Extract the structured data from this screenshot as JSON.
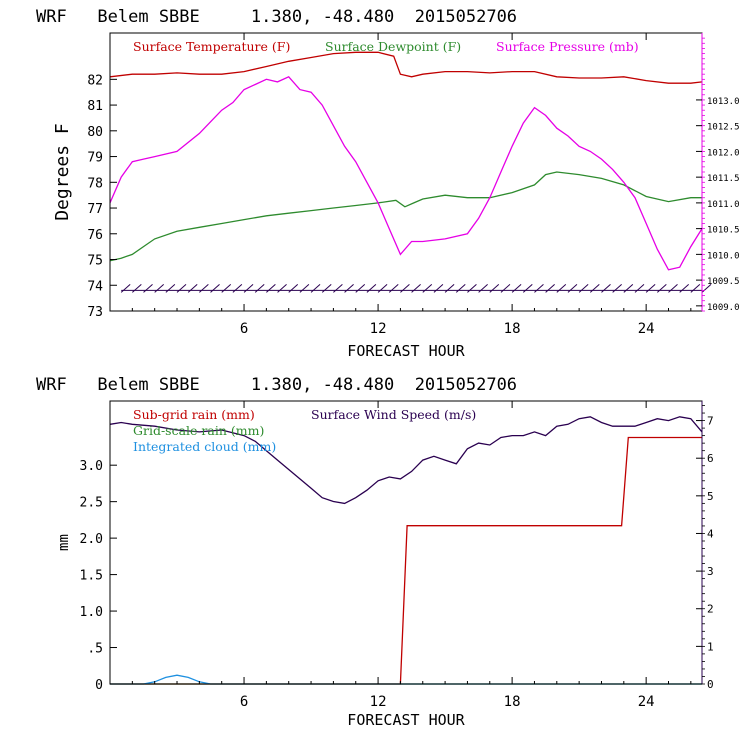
{
  "colors": {
    "temperature": "#c00000",
    "dewpoint": "#2e8b2e",
    "pressure": "#e600e6",
    "wind": "#2a0050",
    "subgrid_rain": "#c00000",
    "gridscale_rain": "#2e8b2e",
    "cloud": "#1e90e0",
    "axis": "#000000"
  },
  "chart_data": [
    {
      "type": "line",
      "title": "WRF   Belem SBBE     1.380, -48.480  2015052706",
      "xlabel": "FORECAST HOUR",
      "ylabel": "Degrees F",
      "xlim": [
        0,
        26.5
      ],
      "ylim": [
        73,
        83.8
      ],
      "y2lim": [
        1008.9,
        1014.3
      ],
      "xticks": [
        6,
        12,
        18,
        24
      ],
      "yticks": [
        73,
        74,
        75,
        76,
        77,
        78,
        79,
        80,
        81,
        82
      ],
      "y2ticks": [
        1009.0,
        1009.5,
        1010.0,
        1010.5,
        1011.0,
        1011.5,
        1012.0,
        1012.5,
        1013.0
      ],
      "y2tick_labels": [
        "1009.0",
        "1009.5",
        "1010.0",
        "1010.5",
        "1011.0",
        "1011.5",
        "1012.0",
        "1012.5",
        "1013.0"
      ],
      "legend": [
        "Surface Temperature (F)",
        "Surface Dewpoint (F)",
        "Surface Pressure (mb)"
      ],
      "series": [
        {
          "name": "Surface Temperature (F)",
          "axis": "left",
          "x": [
            0,
            1,
            2,
            3,
            4,
            5,
            6,
            7,
            8,
            9,
            10,
            11,
            12,
            12.7,
            13,
            13.5,
            14,
            15,
            16,
            17,
            18,
            19,
            20,
            21,
            22,
            23,
            24,
            25,
            26,
            26.5
          ],
          "y": [
            82.1,
            82.2,
            82.2,
            82.25,
            82.2,
            82.2,
            82.3,
            82.5,
            82.7,
            82.85,
            83.0,
            83.05,
            83.05,
            82.9,
            82.2,
            82.1,
            82.2,
            82.3,
            82.3,
            82.25,
            82.3,
            82.3,
            82.1,
            82.05,
            82.05,
            82.1,
            81.95,
            81.85,
            81.85,
            81.9
          ]
        },
        {
          "name": "Surface Dewpoint (F)",
          "axis": "left",
          "x": [
            0,
            0.5,
            1,
            1.5,
            2,
            3,
            4,
            5,
            6,
            7,
            8,
            9,
            10,
            11,
            12,
            12.8,
            13.2,
            13.6,
            14,
            15,
            16,
            17,
            18,
            19,
            19.5,
            20,
            21,
            22,
            23,
            24,
            25,
            26,
            26.5
          ],
          "y": [
            74.95,
            75.05,
            75.2,
            75.5,
            75.8,
            76.1,
            76.25,
            76.4,
            76.55,
            76.7,
            76.8,
            76.9,
            77.0,
            77.1,
            77.2,
            77.3,
            77.05,
            77.2,
            77.35,
            77.5,
            77.4,
            77.4,
            77.6,
            77.9,
            78.3,
            78.4,
            78.3,
            78.15,
            77.9,
            77.45,
            77.25,
            77.4,
            77.4
          ]
        },
        {
          "name": "Surface Pressure (mb)",
          "axis": "right",
          "x": [
            0,
            0.5,
            1,
            1.5,
            2,
            3,
            4,
            5,
            5.5,
            6,
            6.5,
            7,
            7.5,
            8,
            8.5,
            9,
            9.5,
            10,
            10.5,
            11,
            11.5,
            12,
            12.5,
            13,
            13.5,
            14,
            15,
            16,
            16.5,
            17,
            17.5,
            18,
            18.5,
            19,
            19.5,
            20,
            20.5,
            21,
            21.5,
            22,
            22.5,
            23,
            23.5,
            24,
            24.5,
            25,
            25.5,
            26,
            26.5
          ],
          "y": [
            1011.0,
            1011.5,
            1011.8,
            1011.85,
            1011.9,
            1012.0,
            1012.35,
            1012.8,
            1012.95,
            1013.2,
            1013.3,
            1013.4,
            1013.35,
            1013.45,
            1013.2,
            1013.15,
            1012.9,
            1012.5,
            1012.1,
            1011.8,
            1011.4,
            1011.0,
            1010.5,
            1010.0,
            1010.25,
            1010.25,
            1010.3,
            1010.4,
            1010.7,
            1011.1,
            1011.6,
            1012.1,
            1012.55,
            1012.85,
            1012.7,
            1012.45,
            1012.3,
            1012.1,
            1012.0,
            1011.85,
            1011.65,
            1011.4,
            1011.1,
            1010.6,
            1010.1,
            1009.7,
            1009.75,
            1010.15,
            1010.5
          ]
        }
      ],
      "wind_barbs": {
        "y": 73.8,
        "x_start": 0.5,
        "x_end": 26.5,
        "spacing": 0.5
      }
    },
    {
      "type": "line",
      "title": "WRF   Belem SBBE     1.380, -48.480  2015052706",
      "xlabel": "FORECAST HOUR",
      "ylabel": "mm",
      "xlim": [
        0,
        26.5
      ],
      "ylim": [
        0,
        3.88
      ],
      "y2lim": [
        0,
        7.52
      ],
      "xticks": [
        6,
        12,
        18,
        24
      ],
      "yticks": [
        0,
        0.5,
        1.0,
        1.5,
        2.0,
        2.5,
        3.0
      ],
      "ytick_labels": [
        "0",
        ".5",
        "1.0",
        "1.5",
        "2.0",
        "2.5",
        "3.0"
      ],
      "y2ticks": [
        0,
        1,
        2,
        3,
        4,
        5,
        6,
        7
      ],
      "y2tick_labels": [
        "0",
        "1",
        "2",
        "3",
        "4",
        "5",
        "6",
        "7"
      ],
      "legend": [
        "Sub-grid rain (mm)",
        "Surface Wind Speed (m/s)",
        "Grid-scale rain (mm)",
        "Integrated cloud (mm)"
      ],
      "series": [
        {
          "name": "Sub-grid rain (mm)",
          "axis": "left",
          "x": [
            0,
            13.0,
            13.3,
            22.9,
            23.2,
            26.5
          ],
          "y": [
            0,
            0,
            2.17,
            2.17,
            3.38,
            3.38
          ]
        },
        {
          "name": "Surface Wind Speed (m/s)",
          "axis": "right",
          "x": [
            0,
            0.5,
            1,
            2,
            3,
            4,
            5,
            6,
            6.5,
            7,
            7.5,
            8,
            8.5,
            9,
            9.5,
            10,
            10.5,
            11,
            11.5,
            12,
            12.5,
            13,
            13.5,
            14,
            14.5,
            15,
            15.5,
            16,
            16.5,
            17,
            17.5,
            18,
            18.5,
            19,
            19.5,
            20,
            20.5,
            21,
            21.5,
            22,
            22.5,
            23,
            23.5,
            24,
            24.5,
            25,
            25.5,
            26,
            26.5
          ],
          "y": [
            6.9,
            6.95,
            6.9,
            6.85,
            6.75,
            6.7,
            6.75,
            6.6,
            6.45,
            6.2,
            5.95,
            5.7,
            5.45,
            5.2,
            4.95,
            4.85,
            4.8,
            4.95,
            5.15,
            5.4,
            5.5,
            5.45,
            5.65,
            5.95,
            6.05,
            5.95,
            5.85,
            6.25,
            6.4,
            6.35,
            6.55,
            6.6,
            6.6,
            6.7,
            6.6,
            6.85,
            6.9,
            7.05,
            7.1,
            6.95,
            6.85,
            6.85,
            6.85,
            6.95,
            7.05,
            7.0,
            7.1,
            7.05,
            6.7
          ]
        },
        {
          "name": "Grid-scale rain (mm)",
          "axis": "left",
          "x": [
            0,
            26.5
          ],
          "y": [
            0,
            0
          ]
        },
        {
          "name": "Integrated cloud (mm)",
          "axis": "left",
          "x": [
            0,
            1.5,
            2.0,
            2.5,
            3.0,
            3.5,
            4.0,
            4.5,
            26.5
          ],
          "y": [
            0,
            0,
            0.03,
            0.09,
            0.12,
            0.09,
            0.03,
            0,
            0
          ]
        }
      ]
    }
  ]
}
